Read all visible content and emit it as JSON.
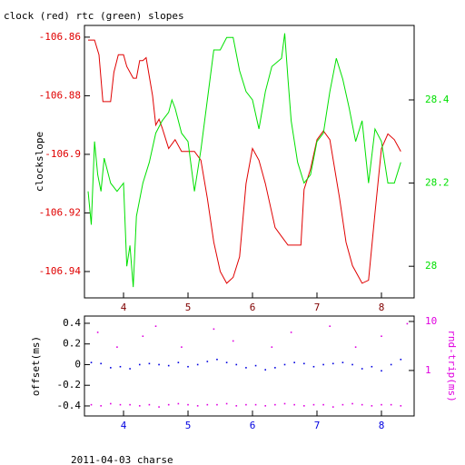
{
  "chart_data": [
    {
      "type": "line",
      "title": "clock (red) rtc (green) slopes",
      "ylabel": "clockslope",
      "xlim": [
        3.394,
        8.507
      ],
      "xticks": [
        4,
        5,
        6,
        7,
        8
      ],
      "ylim": [
        -106.949,
        -106.856
      ],
      "yticks": [
        -106.86,
        -106.88,
        -106.9,
        -106.92,
        -106.94
      ],
      "y2lim": [
        27.924,
        28.579
      ],
      "y2ticks": [
        28,
        28.2,
        28.4
      ],
      "series": [
        {
          "color": "#e00000",
          "x": [
            3.45,
            3.55,
            3.62,
            3.68,
            3.8,
            3.85,
            3.92,
            4.0,
            4.05,
            4.15,
            4.2,
            4.25,
            4.3,
            4.35,
            4.45,
            4.5,
            4.55,
            4.6,
            4.7,
            4.8,
            4.9,
            5.0,
            5.1,
            5.2,
            5.3,
            5.4,
            5.5,
            5.6,
            5.7,
            5.8,
            5.9,
            6.0,
            6.1,
            6.2,
            6.35,
            6.45,
            6.55,
            6.75,
            6.8,
            6.9,
            7.0,
            7.1,
            7.2,
            7.35,
            7.45,
            7.55,
            7.7,
            7.8,
            7.9,
            8.0,
            8.1,
            8.2,
            8.3
          ],
          "values": [
            -106.861,
            -106.861,
            -106.866,
            -106.882,
            -106.882,
            -106.872,
            -106.866,
            -106.866,
            -106.87,
            -106.874,
            -106.874,
            -106.868,
            -106.868,
            -106.867,
            -106.88,
            -106.89,
            -106.888,
            -106.891,
            -106.898,
            -106.895,
            -106.899,
            -106.899,
            -106.899,
            -106.902,
            -106.915,
            -106.93,
            -106.94,
            -106.944,
            -106.942,
            -106.935,
            -106.91,
            -106.898,
            -106.902,
            -106.91,
            -106.925,
            -106.928,
            -106.931,
            -106.931,
            -106.912,
            -106.905,
            -106.895,
            -106.892,
            -106.895,
            -106.915,
            -106.93,
            -106.938,
            -106.944,
            -106.943,
            -106.92,
            -106.898,
            -106.893,
            -106.895,
            -106.899
          ]
        },
        {
          "color": "#00e000",
          "axis": "y2",
          "x": [
            3.45,
            3.5,
            3.55,
            3.6,
            3.65,
            3.7,
            3.8,
            3.9,
            4.0,
            4.05,
            4.1,
            4.15,
            4.2,
            4.3,
            4.4,
            4.5,
            4.6,
            4.7,
            4.75,
            4.8,
            4.9,
            5.0,
            5.1,
            5.2,
            5.3,
            5.4,
            5.5,
            5.6,
            5.7,
            5.8,
            5.9,
            6.0,
            6.1,
            6.2,
            6.3,
            6.45,
            6.5,
            6.55,
            6.6,
            6.7,
            6.8,
            6.9,
            7.0,
            7.1,
            7.2,
            7.3,
            7.4,
            7.5,
            7.6,
            7.7,
            7.8,
            7.9,
            8.0,
            8.1,
            8.2,
            8.3
          ],
          "values": [
            28.18,
            28.1,
            28.3,
            28.22,
            28.18,
            28.26,
            28.2,
            28.18,
            28.2,
            28.0,
            28.05,
            27.95,
            28.12,
            28.2,
            28.25,
            28.32,
            28.35,
            28.37,
            28.4,
            28.38,
            28.32,
            28.3,
            28.18,
            28.28,
            28.4,
            28.52,
            28.52,
            28.55,
            28.55,
            28.47,
            28.42,
            28.4,
            28.33,
            28.42,
            28.48,
            28.5,
            28.56,
            28.45,
            28.35,
            28.25,
            28.2,
            28.22,
            28.3,
            28.32,
            28.42,
            28.5,
            28.45,
            28.38,
            28.3,
            28.35,
            28.2,
            28.33,
            28.3,
            28.2,
            28.2,
            28.25
          ]
        }
      ]
    },
    {
      "type": "scatter",
      "ylabel": "offset(ms)",
      "y2label": "rnd-trip(ms)",
      "footer": "2011-04-03 charse",
      "xlim": [
        3.394,
        8.507
      ],
      "xticks": [
        4,
        5,
        6,
        7,
        8
      ],
      "ylim": [
        -0.497,
        0.47
      ],
      "yticks": [
        0.4,
        0.2,
        0,
        -0.2,
        -0.4
      ],
      "y2lim": [
        0.118,
        12.9
      ],
      "y2ticks": [
        1,
        10
      ],
      "y2log": true,
      "series": [
        {
          "color": "#0000e0",
          "x": [
            3.5,
            3.65,
            3.8,
            3.95,
            4.1,
            4.25,
            4.4,
            4.55,
            4.7,
            4.85,
            5.0,
            5.15,
            5.3,
            5.45,
            5.6,
            5.75,
            5.9,
            6.05,
            6.2,
            6.35,
            6.5,
            6.65,
            6.8,
            6.95,
            7.1,
            7.25,
            7.4,
            7.55,
            7.7,
            7.85,
            8.0,
            8.15,
            8.3
          ],
          "values": [
            0.02,
            0.01,
            -0.03,
            -0.02,
            -0.04,
            0.0,
            0.01,
            0.0,
            -0.01,
            0.02,
            -0.02,
            0.0,
            0.03,
            0.05,
            0.02,
            0.0,
            -0.03,
            -0.01,
            -0.05,
            -0.03,
            0.0,
            0.02,
            0.01,
            -0.02,
            0.0,
            0.01,
            0.02,
            0.0,
            -0.04,
            -0.02,
            -0.06,
            0.0,
            0.05
          ]
        },
        {
          "color": "#e000e0",
          "axis": "y2",
          "x": [
            3.5,
            3.65,
            3.8,
            3.95,
            4.1,
            4.25,
            4.4,
            4.55,
            4.7,
            4.85,
            5.0,
            5.15,
            5.3,
            5.45,
            5.6,
            5.75,
            5.9,
            6.05,
            6.2,
            6.35,
            6.5,
            6.65,
            6.8,
            6.95,
            7.1,
            7.25,
            7.4,
            7.55,
            7.7,
            7.85,
            8.0,
            8.15,
            8.3,
            3.6,
            3.9,
            4.3,
            4.5,
            4.9,
            5.4,
            5.7,
            6.3,
            6.6,
            7.2,
            7.6,
            8.0,
            8.4
          ],
          "values": [
            0.2,
            0.19,
            0.21,
            0.2,
            0.2,
            0.19,
            0.2,
            0.18,
            0.2,
            0.21,
            0.2,
            0.19,
            0.2,
            0.2,
            0.21,
            0.19,
            0.2,
            0.2,
            0.19,
            0.2,
            0.21,
            0.2,
            0.19,
            0.2,
            0.2,
            0.18,
            0.2,
            0.21,
            0.2,
            0.19,
            0.2,
            0.2,
            0.19,
            6,
            3,
            5,
            8,
            3,
            7,
            4,
            3,
            6,
            8,
            3,
            5,
            9
          ]
        }
      ]
    }
  ]
}
